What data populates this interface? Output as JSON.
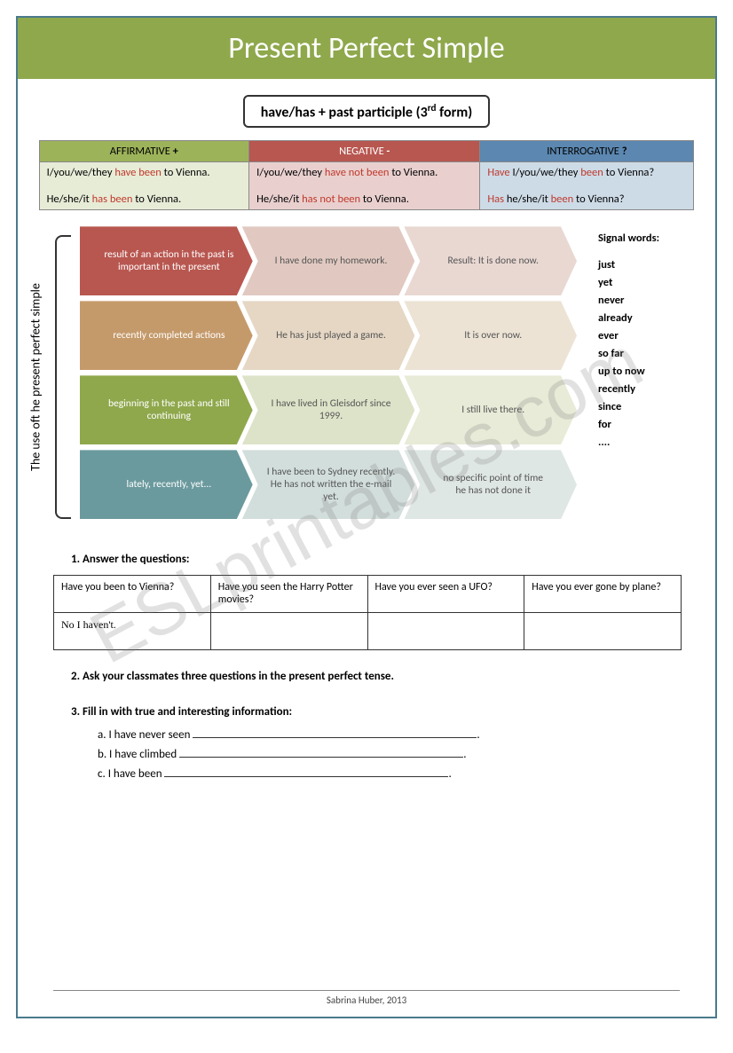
{
  "title": "Present Perfect Simple",
  "formula": "have/has + past participle (3",
  "formula_sup": "rd",
  "formula_end": " form)",
  "watermark": "ESLprintables.com",
  "headers": {
    "aff": "AFFIRMATIVE",
    "aff_sym": "+",
    "neg": "NEGATIVE",
    "neg_sym": "-",
    "int": "INTERROGATIVE",
    "int_sym": "?"
  },
  "cells": {
    "aff1_a": "I/you/we/they ",
    "aff1_b": "have  been",
    "aff1_c": " to Vienna.",
    "aff2_a": "He/she/it ",
    "aff2_b": "has   been",
    "aff2_c": " to Vienna.",
    "neg1_a": "I/you/we/they ",
    "neg1_b": "have not  been",
    "neg1_c": " to Vienna.",
    "neg2_a": "He/she/it ",
    "neg2_b": "has not  been",
    "neg2_c": " to Vienna.",
    "int1_a": "Have",
    "int1_b": " I/you/we/they ",
    "int1_c": "been",
    "int1_d": " to Vienna?",
    "int2_a": "Has",
    "int2_b": "   he/she/it ",
    "int2_c": "been",
    "int2_d": " to Vienna?"
  },
  "vert_label": "The use oft he present perfect simple",
  "rows": [
    {
      "c1": "result of an action in the past is important in the present",
      "c2": "I have done my homework.",
      "c3": "Result: It is done now.",
      "colors": [
        "#b85750",
        "#e1c9c1",
        "#e9d8d2"
      ]
    },
    {
      "c1": "recently completed actions",
      "c2": "He has just played a game.",
      "c3": "It is over now.",
      "colors": [
        "#c59a6b",
        "#e5d7c4",
        "#ece3d5"
      ]
    },
    {
      "c1": "beginning in the past and still continuing",
      "c2": "I have lived in Gleisdorf since 1999.",
      "c3": "I still live there.",
      "colors": [
        "#8fa84c",
        "#dde3c8",
        "#e7ebd7"
      ]
    },
    {
      "c1": "lately, recently, yet...",
      "c2": "I have been to Sydney recently.\nHe has not written the e-mail yet.",
      "c3": "no specific point of time\nhe has not done it",
      "colors": [
        "#6b9a9e",
        "#d2dedc",
        "#dfe7e5"
      ]
    }
  ],
  "signal": {
    "hdr": "Signal words:",
    "items": [
      "just",
      "yet",
      "never",
      "already",
      "ever",
      "so far",
      "up to now",
      "recently",
      "since",
      "for",
      "...."
    ]
  },
  "ex1": {
    "title": "1.   Answer the questions:",
    "q": [
      "Have you been to Vienna?",
      "Have you seen the Harry Potter movies?",
      "Have you ever seen a UFO?",
      "Have you ever gone by plane?"
    ],
    "a1": "No I haven't."
  },
  "ex2": "2.  Ask your classmates three questions in the present perfect tense.",
  "ex3": {
    "title": "3.  Fill in with true and interesting information:",
    "a": "a.   I have never seen",
    "b": "b.   I have climbed",
    "c": "c.   I have been"
  },
  "footer": "Sabrina Huber, 2013"
}
